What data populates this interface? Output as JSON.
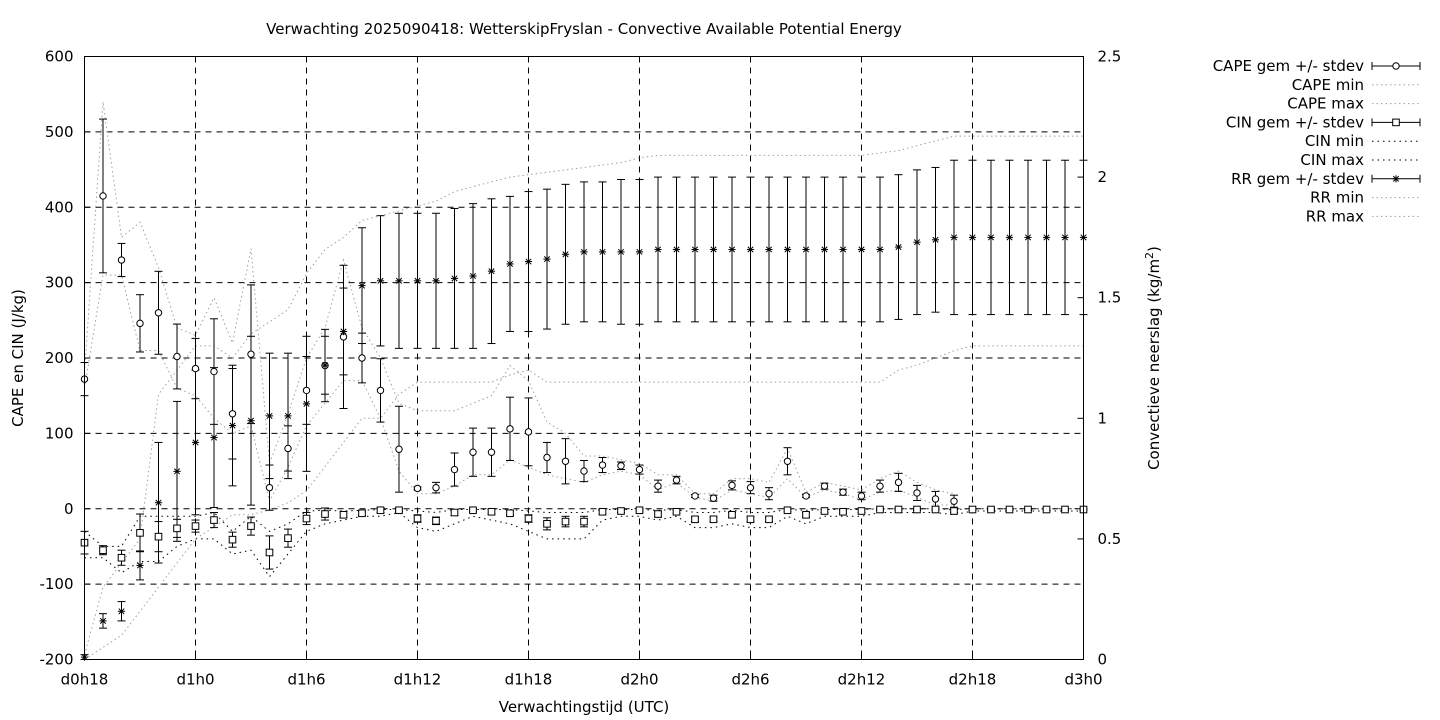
{
  "chart_data": {
    "type": "scatter",
    "title": "Verwachting 2025090418: WetterskipFryslan - Convective Available Potential Energy",
    "xlabel": "Verwachtingstijd (UTC)",
    "ylabel": "CAPE en CIN (J/kg)",
    "y2label_main": "Convectieve neerslag (kg/m",
    "y2label_sup": "2",
    "y2label_end": ")",
    "xlim": [
      18,
      72
    ],
    "ylim": [
      -200,
      600
    ],
    "y2lim": [
      0,
      2.5
    ],
    "x_ticks": [
      {
        "value": 18,
        "label": "d0h18"
      },
      {
        "value": 24,
        "label": "d1h0"
      },
      {
        "value": 30,
        "label": "d1h6"
      },
      {
        "value": 36,
        "label": "d1h12"
      },
      {
        "value": 42,
        "label": "d1h18"
      },
      {
        "value": 48,
        "label": "d2h0"
      },
      {
        "value": 54,
        "label": "d2h6"
      },
      {
        "value": 60,
        "label": "d2h12"
      },
      {
        "value": 66,
        "label": "d2h18"
      },
      {
        "value": 72,
        "label": "d3h0"
      }
    ],
    "y_ticks": [
      {
        "value": -200,
        "label": "-200"
      },
      {
        "value": -100,
        "label": "-100"
      },
      {
        "value": 0,
        "label": "0"
      },
      {
        "value": 100,
        "label": "100"
      },
      {
        "value": 200,
        "label": "200"
      },
      {
        "value": 300,
        "label": "300"
      },
      {
        "value": 400,
        "label": "400"
      },
      {
        "value": 500,
        "label": "500"
      },
      {
        "value": 600,
        "label": "600"
      }
    ],
    "y2_ticks": [
      {
        "value": 0,
        "label": "0"
      },
      {
        "value": 0.5,
        "label": "0.5"
      },
      {
        "value": 1,
        "label": "1"
      },
      {
        "value": 1.5,
        "label": "1.5"
      },
      {
        "value": 2,
        "label": "2"
      },
      {
        "value": 2.5,
        "label": "2.5"
      }
    ],
    "grid": true,
    "legend_position": "outside-top-right",
    "x": [
      18,
      19,
      20,
      21,
      22,
      23,
      24,
      25,
      26,
      27,
      28,
      29,
      30,
      31,
      32,
      33,
      34,
      35,
      36,
      37,
      38,
      39,
      40,
      41,
      42,
      43,
      44,
      45,
      46,
      47,
      48,
      49,
      50,
      51,
      52,
      53,
      54,
      55,
      56,
      57,
      58,
      59,
      60,
      61,
      62,
      63,
      64,
      65,
      66,
      67,
      68,
      69,
      70,
      71,
      72
    ],
    "series": [
      {
        "name": "CAPE gem +/- stdev",
        "axis": "y1",
        "marker": "circle",
        "n": 48,
        "mean": [
          172,
          415,
          330,
          246,
          260,
          202,
          186,
          182,
          126,
          205,
          28,
          80,
          157,
          190,
          228,
          200,
          157,
          79,
          27,
          28,
          52,
          75,
          75,
          106,
          102,
          68,
          63,
          50,
          58,
          57,
          52,
          30,
          38,
          17,
          14,
          31,
          28,
          20,
          63,
          17,
          30,
          22,
          17,
          30,
          35,
          21,
          13,
          10
        ],
        "err": [
          22,
          102,
          22,
          38,
          55,
          43,
          40,
          70,
          60,
          92,
          30,
          30,
          45,
          48,
          95,
          33,
          42,
          57,
          2,
          7,
          22,
          32,
          32,
          42,
          45,
          20,
          30,
          14,
          10,
          5,
          6,
          8,
          5,
          2,
          4,
          6,
          8,
          8,
          18,
          2,
          4,
          4,
          5,
          8,
          12,
          10,
          10,
          8
        ]
      },
      {
        "name": "CAPE min",
        "axis": "y1",
        "style": "dotted",
        "values": [
          160,
          310,
          310,
          210,
          210,
          160,
          150,
          120,
          100,
          110,
          10,
          55,
          110,
          140,
          170,
          170,
          120,
          50,
          20,
          20,
          30,
          45,
          45,
          65,
          55,
          45,
          40,
          35,
          45,
          50,
          45,
          25,
          35,
          15,
          10,
          25,
          20,
          15,
          40,
          15,
          25,
          20,
          12,
          22,
          25,
          15,
          5,
          5
        ]
      },
      {
        "name": "CAPE max",
        "axis": "y1",
        "style": "dotted",
        "values": [
          180,
          540,
          360,
          380,
          320,
          240,
          230,
          280,
          220,
          345,
          60,
          125,
          200,
          240,
          330,
          240,
          200,
          140,
          130,
          130,
          130,
          140,
          150,
          190,
          170,
          115,
          100,
          70,
          70,
          65,
          60,
          45,
          45,
          20,
          20,
          40,
          40,
          35,
          80,
          22,
          35,
          30,
          25,
          40,
          50,
          35,
          25,
          20
        ]
      },
      {
        "name": "CIN gem +/- stdev",
        "axis": "y1",
        "marker": "square",
        "n": 55,
        "mean": [
          -45,
          -55,
          -65,
          -32,
          -37,
          -26,
          -23,
          -15,
          -41,
          -23,
          -58,
          -39,
          -13,
          -7,
          -8,
          -6,
          -2,
          -2,
          -13,
          -16,
          -5,
          -2,
          -4,
          -6,
          -13,
          -20,
          -17,
          -17,
          -4,
          -3,
          -2,
          -7,
          -4,
          -14,
          -14,
          -8,
          -14,
          -14,
          -2,
          -8,
          -3,
          -4,
          -3,
          -1,
          -1,
          -1,
          -1,
          -3,
          -1,
          -1,
          -1,
          -1,
          -1,
          -1,
          -1
        ],
        "err": [
          15,
          6,
          10,
          25,
          20,
          12,
          8,
          10,
          10,
          12,
          22,
          12,
          8,
          8,
          4,
          3,
          3,
          2,
          5,
          5,
          4,
          2,
          3,
          3,
          5,
          8,
          7,
          7,
          3,
          2,
          2,
          4,
          2,
          3,
          3,
          3,
          3,
          3,
          2,
          3,
          2,
          2,
          2,
          1,
          1,
          1,
          1,
          2,
          1,
          1,
          1,
          1,
          1,
          1,
          1
        ]
      },
      {
        "name": "CIN min",
        "axis": "y1",
        "style": "dotted",
        "values": [
          -65,
          -65,
          -85,
          -70,
          -70,
          -50,
          -40,
          -40,
          -60,
          -55,
          -90,
          -60,
          -30,
          -20,
          -15,
          -10,
          -10,
          -5,
          -25,
          -30,
          -20,
          -10,
          -15,
          -20,
          -30,
          -40,
          -40,
          -40,
          -15,
          -10,
          -10,
          -15,
          -10,
          -25,
          -25,
          -20,
          -25,
          -25,
          -10,
          -20,
          -10,
          -10,
          -10,
          -5,
          -5,
          -5,
          -5,
          -8,
          -3,
          -3,
          -3,
          -3,
          -3,
          -3,
          -3
        ]
      },
      {
        "name": "CIN max",
        "axis": "y1",
        "style": "dotted",
        "values": [
          -30,
          -50,
          -50,
          -10,
          -10,
          -10,
          -10,
          -5,
          -30,
          -10,
          -30,
          -20,
          -3,
          -2,
          -3,
          -2,
          -1,
          -1,
          -3,
          -5,
          -1,
          -1,
          -1,
          -1,
          -3,
          -5,
          -5,
          -5,
          -1,
          -1,
          -1,
          -2,
          -1,
          -5,
          -5,
          -2,
          -5,
          -5,
          -1,
          -2,
          -1,
          -1,
          -1,
          0,
          0,
          0,
          0,
          -1,
          0,
          0,
          0,
          0,
          0,
          0,
          0
        ]
      },
      {
        "name": "RR gem +/- stdev",
        "axis": "y2",
        "marker": "star",
        "n": 55,
        "mean": [
          0.01,
          0.16,
          0.2,
          0.39,
          0.65,
          0.78,
          0.9,
          0.92,
          0.97,
          0.99,
          1.01,
          1.01,
          1.06,
          1.22,
          1.36,
          1.55,
          1.57,
          1.57,
          1.57,
          1.57,
          1.58,
          1.59,
          1.61,
          1.64,
          1.65,
          1.66,
          1.68,
          1.69,
          1.69,
          1.69,
          1.69,
          1.7,
          1.7,
          1.7,
          1.7,
          1.7,
          1.7,
          1.7,
          1.7,
          1.7,
          1.7,
          1.7,
          1.7,
          1.7,
          1.71,
          1.73,
          1.74,
          1.75,
          1.75,
          1.75,
          1.75,
          1.75,
          1.75,
          1.75,
          1.75
        ],
        "err": [
          0.01,
          0.03,
          0.04,
          0.06,
          0.25,
          0.29,
          0.3,
          0.29,
          0.25,
          0.35,
          0.26,
          0.26,
          0.28,
          0.12,
          0.18,
          0.24,
          0.27,
          0.28,
          0.28,
          0.28,
          0.29,
          0.3,
          0.3,
          0.28,
          0.29,
          0.29,
          0.29,
          0.29,
          0.29,
          0.3,
          0.3,
          0.3,
          0.3,
          0.3,
          0.3,
          0.3,
          0.3,
          0.3,
          0.3,
          0.3,
          0.3,
          0.3,
          0.3,
          0.3,
          0.3,
          0.3,
          0.3,
          0.32,
          0.32,
          0.32,
          0.32,
          0.32,
          0.32,
          0.32,
          0.32
        ]
      },
      {
        "name": "RR min",
        "axis": "y2",
        "style": "dotted",
        "values": [
          0,
          0.05,
          0.1,
          0.2,
          0.3,
          0.4,
          0.5,
          0.55,
          0.6,
          0.6,
          0.62,
          0.65,
          0.7,
          0.8,
          0.9,
          1.0,
          1.0,
          1.1,
          1.15,
          1.15,
          1.15,
          1.15,
          1.15,
          1.18,
          1.2,
          1.15,
          1.15,
          1.15,
          1.15,
          1.15,
          1.15,
          1.15,
          1.15,
          1.15,
          1.15,
          1.15,
          1.15,
          1.15,
          1.15,
          1.15,
          1.15,
          1.15,
          1.15,
          1.15,
          1.2,
          1.22,
          1.25,
          1.28,
          1.3,
          1.3,
          1.3,
          1.3,
          1.3,
          1.3,
          1.3
        ]
      },
      {
        "name": "RR max",
        "axis": "y2",
        "style": "dotted",
        "values": [
          0.02,
          0.3,
          0.4,
          0.5,
          1.1,
          1.2,
          1.3,
          1.3,
          1.25,
          1.35,
          1.4,
          1.45,
          1.6,
          1.7,
          1.75,
          1.82,
          1.84,
          1.86,
          1.88,
          1.9,
          1.94,
          1.96,
          1.98,
          2.0,
          2.01,
          2.02,
          2.03,
          2.04,
          2.05,
          2.06,
          2.08,
          2.09,
          2.09,
          2.09,
          2.09,
          2.09,
          2.09,
          2.09,
          2.09,
          2.09,
          2.09,
          2.09,
          2.09,
          2.1,
          2.11,
          2.13,
          2.15,
          2.17,
          2.17,
          2.17,
          2.17,
          2.17,
          2.17,
          2.17,
          2.17
        ]
      }
    ]
  }
}
